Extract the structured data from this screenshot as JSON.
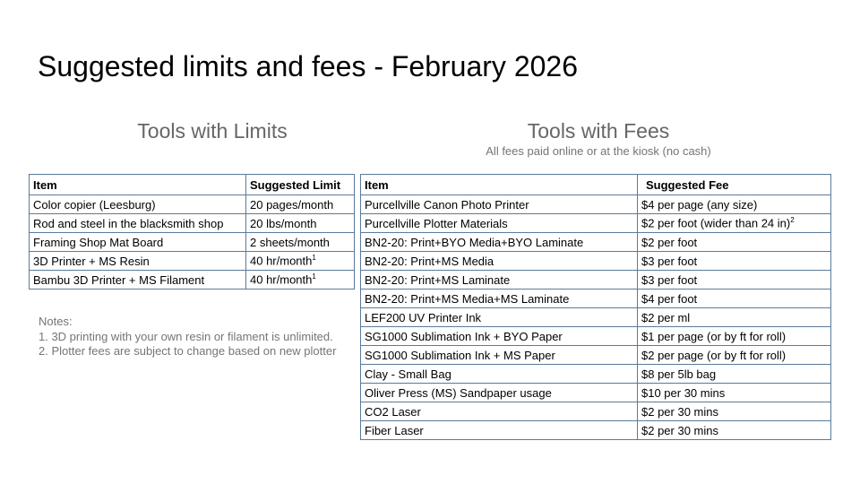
{
  "title": "Suggested limits and fees - February 2026",
  "limits": {
    "heading": "Tools with Limits",
    "columns": [
      "Item",
      "Suggested Limit"
    ],
    "rows": [
      {
        "item": "Color copier (Leesburg)",
        "value": "20 pages/month",
        "sup": ""
      },
      {
        "item": "Rod and steel in the blacksmith shop",
        "value": "20 lbs/month",
        "sup": ""
      },
      {
        "item": "Framing Shop Mat Board",
        "value": "2 sheets/month",
        "sup": ""
      },
      {
        "item": "3D Printer + MS Resin",
        "value": "40 hr/month",
        "sup": "1"
      },
      {
        "item": "Bambu 3D Printer + MS Filament",
        "value": "40 hr/month",
        "sup": "1"
      }
    ],
    "notes": [
      "Notes:",
      "1. 3D printing with your own resin or filament is unlimited.",
      "2. Plotter fees are subject to change based on new plotter"
    ]
  },
  "fees": {
    "heading": "Tools with Fees",
    "subheading": "All fees paid online or at the kiosk (no cash)",
    "columns": [
      "Item",
      "Suggested Fee"
    ],
    "rows": [
      {
        "item": "Purcellville Canon Photo Printer",
        "value": "$4 per page (any size)",
        "sup": ""
      },
      {
        "item": "Purcellville Plotter Materials",
        "value": "$2 per foot (wider than 24 in)",
        "sup": "2"
      },
      {
        "item": "BN2-20: Print+BYO Media+BYO Laminate",
        "value": "$2 per foot",
        "sup": ""
      },
      {
        "item": "BN2-20: Print+MS Media",
        "value": "$3 per foot",
        "sup": ""
      },
      {
        "item": "BN2-20: Print+MS Laminate",
        "value": "$3 per foot",
        "sup": ""
      },
      {
        "item": "BN2-20: Print+MS Media+MS Laminate",
        "value": "$4 per foot",
        "sup": ""
      },
      {
        "item": "LEF200 UV Printer Ink",
        "value": "$2 per ml",
        "sup": ""
      },
      {
        "item": "SG1000 Sublimation Ink + BYO Paper",
        "value": "$1 per page (or by ft for roll)",
        "sup": ""
      },
      {
        "item": "SG1000 Sublimation Ink + MS Paper",
        "value": "$2 per page (or by ft for roll)",
        "sup": ""
      },
      {
        "item": "Clay - Small Bag",
        "value": "$8 per 5lb bag",
        "sup": ""
      },
      {
        "item": "Oliver Press (MS) Sandpaper usage",
        "value": "$10 per 30 mins",
        "sup": ""
      },
      {
        "item": "CO2 Laser",
        "value": "$2 per 30 mins",
        "sup": ""
      },
      {
        "item": "Fiber Laser",
        "value": "$2 per 30 mins",
        "sup": ""
      }
    ]
  },
  "colors": {
    "border": "#5b7a99",
    "heading": "#666666",
    "notes": "#757575"
  }
}
